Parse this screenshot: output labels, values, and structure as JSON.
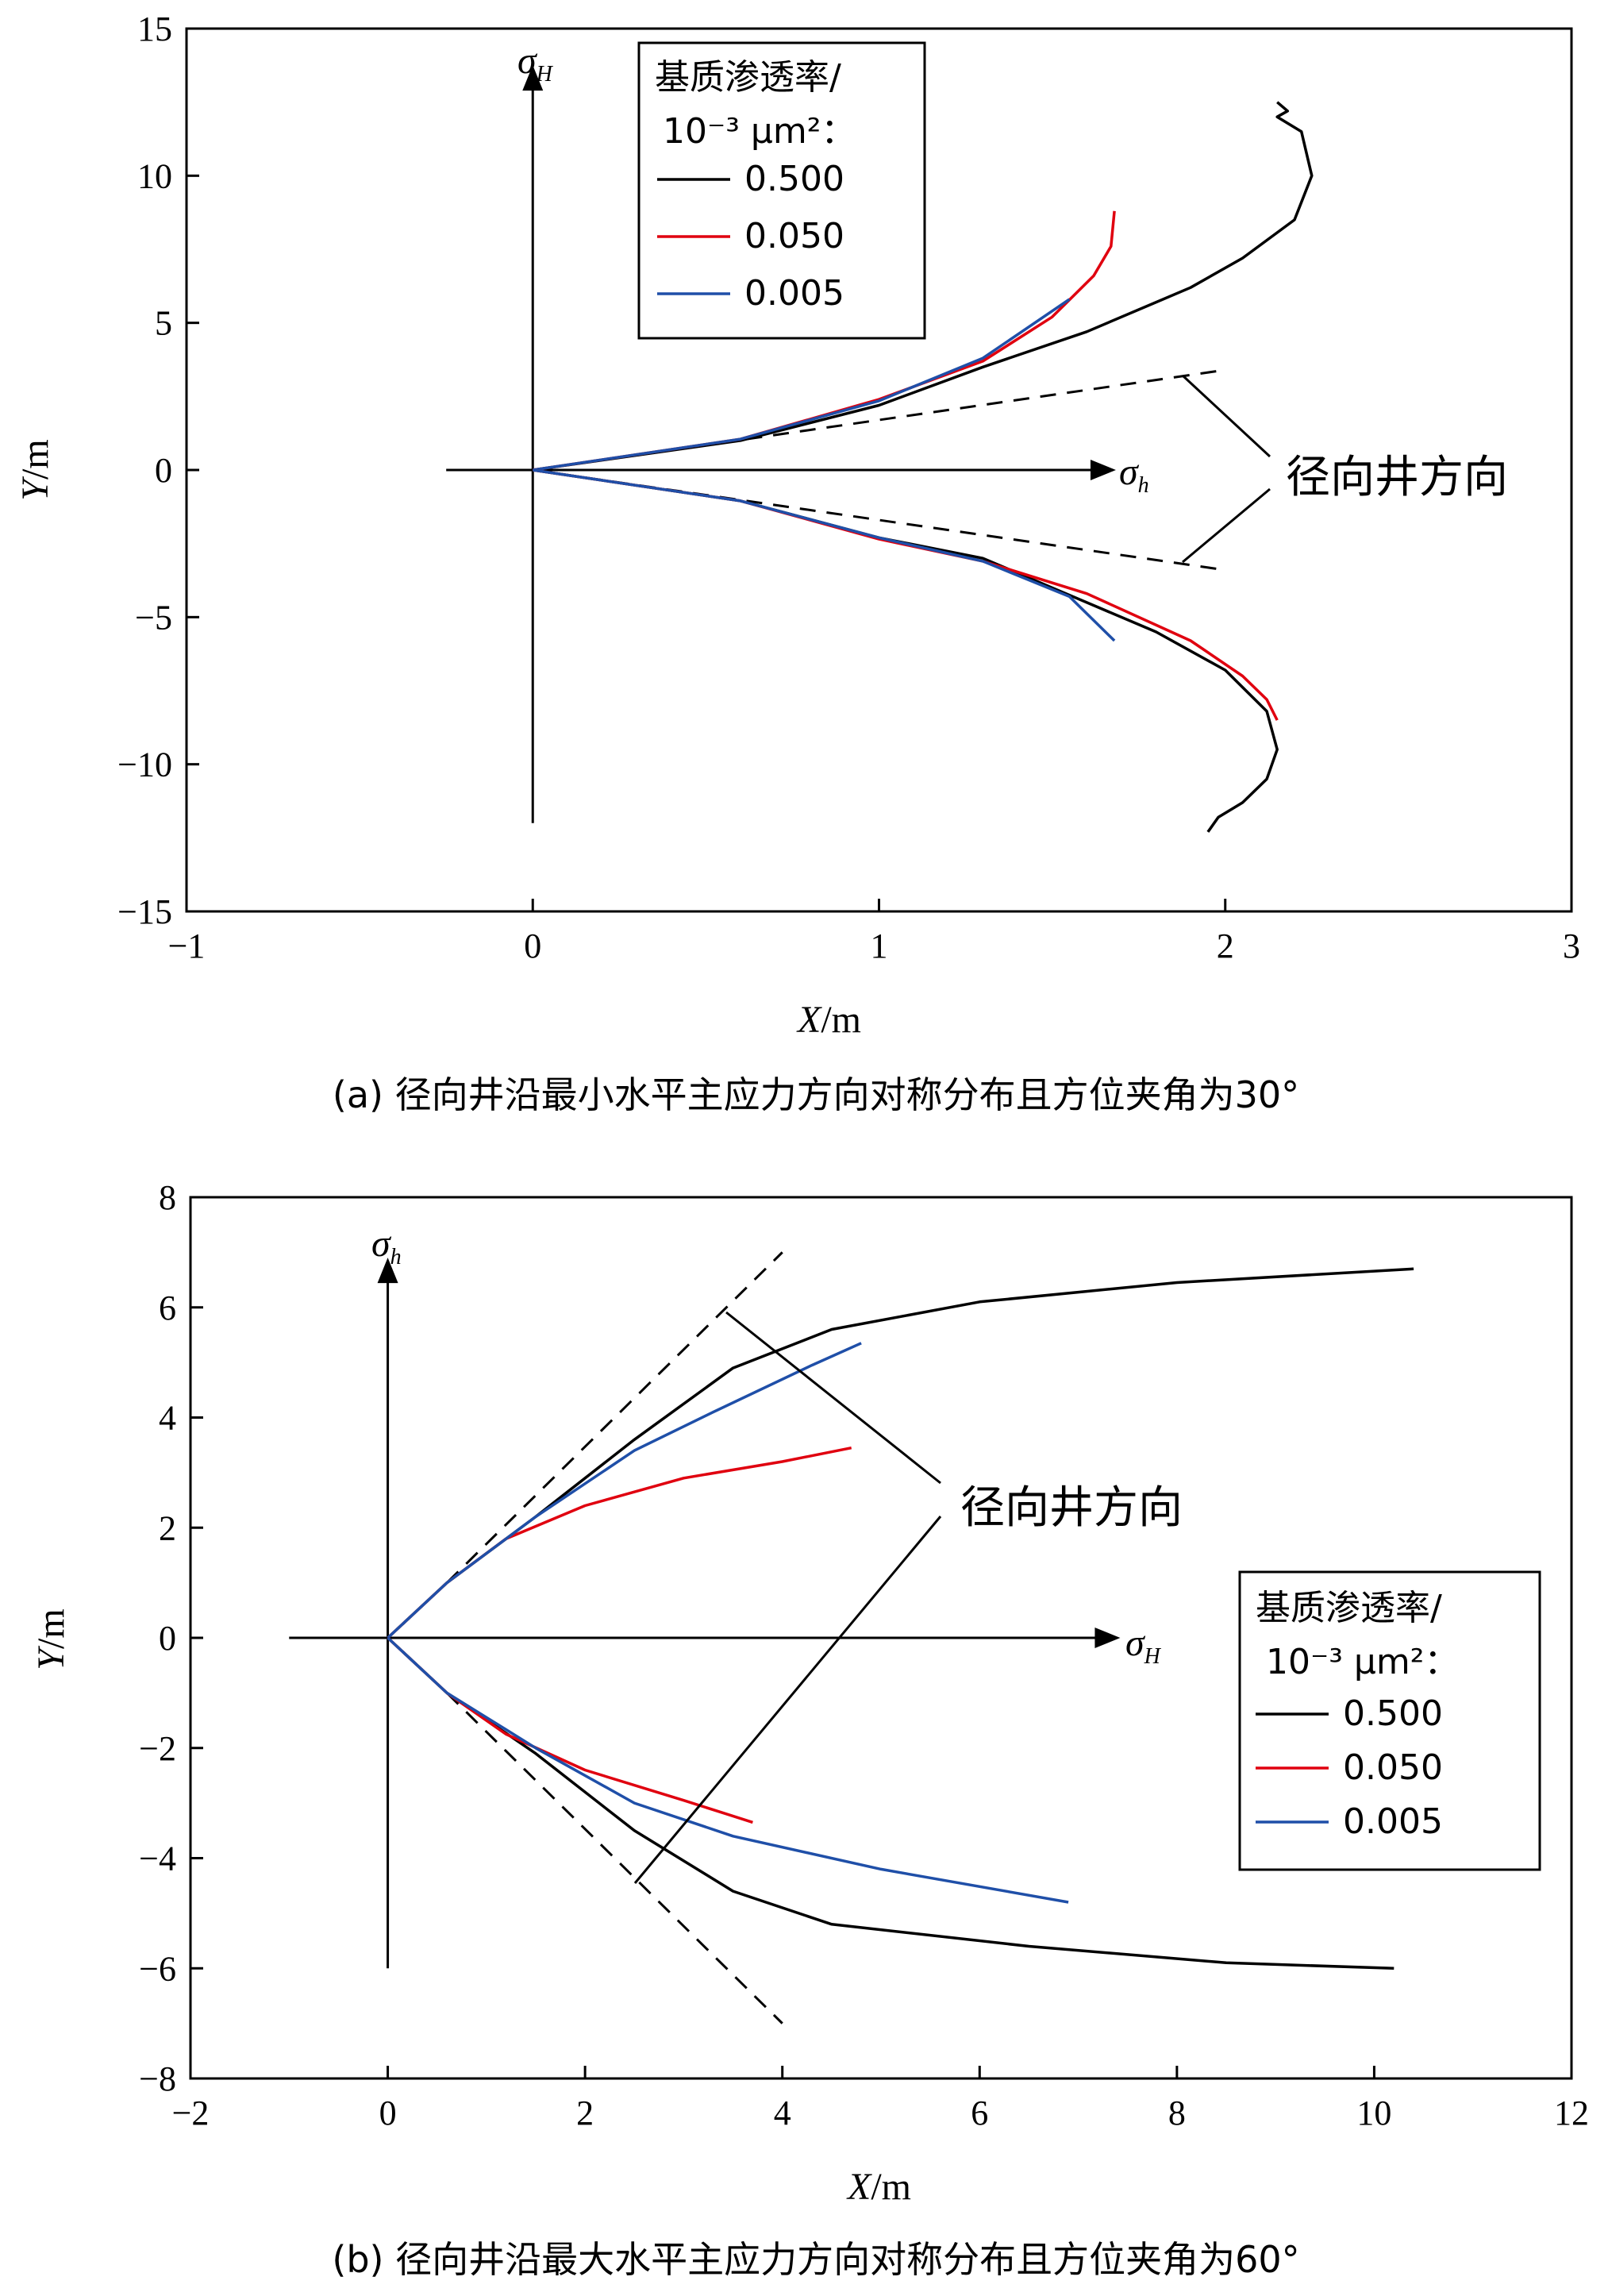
{
  "chart_data": [
    {
      "type": "line",
      "caption": "(a) 径向井沿最小水平主应力方向对称分布且方位夹角为30°",
      "xlabel_var": "X",
      "xlabel_unit": "/m",
      "ylabel_var": "Y",
      "ylabel_unit": "/m",
      "xlim": [
        -1,
        3
      ],
      "ylim": [
        -15,
        15
      ],
      "xticks": [
        "−1",
        "0",
        "1",
        "2",
        "3"
      ],
      "yticks": [
        "15",
        "10",
        "5",
        "0",
        "−5",
        "−10",
        "−15"
      ],
      "xtick_values": [
        -1,
        0,
        1,
        2,
        3
      ],
      "ytick_values": [
        15,
        10,
        5,
        0,
        -5,
        -10,
        -15
      ],
      "stress_x": {
        "symbol": "σ",
        "sub": "h"
      },
      "stress_y": {
        "symbol": "σ",
        "sub": "H"
      },
      "stress_axes": {
        "x": [
          -0.25,
          1.62
        ],
        "y": [
          -12,
          13
        ]
      },
      "legend": {
        "title_line1": "基质渗透率/",
        "title_line2": "10⁻³ μm²：",
        "position": "top-center",
        "entries": [
          {
            "label": "0.500",
            "color": "#000000"
          },
          {
            "label": "0.050",
            "color": "#e0000f"
          },
          {
            "label": "0.005",
            "color": "#1f4fa8"
          }
        ]
      },
      "annotation": "径向井方向",
      "guide_lines": [
        [
          [
            0,
            0
          ],
          [
            2.0,
            3.4
          ]
        ],
        [
          [
            0,
            0
          ],
          [
            2.0,
            -3.4
          ]
        ]
      ],
      "series": [
        {
          "name": "0.500",
          "color": "#000000",
          "x": [
            0,
            0.6,
            1.0,
            1.3,
            1.6,
            1.9,
            2.05,
            2.2,
            2.25,
            2.22,
            2.15,
            2.18,
            2.15
          ],
          "y": [
            0,
            1.0,
            2.2,
            3.5,
            4.7,
            6.2,
            7.2,
            8.5,
            10.0,
            11.5,
            12.0,
            12.2,
            12.5
          ]
        },
        {
          "name": "0.050",
          "color": "#e0000f",
          "x": [
            0,
            0.6,
            1.0,
            1.3,
            1.5,
            1.62,
            1.67,
            1.68
          ],
          "y": [
            0,
            1.05,
            2.4,
            3.7,
            5.2,
            6.6,
            7.6,
            8.8
          ]
        },
        {
          "name": "0.005",
          "color": "#1f4fa8",
          "x": [
            0,
            0.6,
            1.0,
            1.3,
            1.55
          ],
          "y": [
            0,
            1.05,
            2.35,
            3.8,
            5.8
          ]
        },
        {
          "name": "0.500",
          "color": "#000000",
          "x": [
            0,
            0.6,
            1.0,
            1.3,
            1.5,
            1.8,
            2.0,
            2.12,
            2.15,
            2.12,
            2.05,
            1.98,
            1.95
          ],
          "y": [
            0,
            -1.05,
            -2.3,
            -3.0,
            -4.0,
            -5.5,
            -6.8,
            -8.2,
            -9.5,
            -10.5,
            -11.3,
            -11.8,
            -12.3
          ]
        },
        {
          "name": "0.050",
          "color": "#e0000f",
          "x": [
            0,
            0.6,
            1.0,
            1.3,
            1.6,
            1.9,
            2.05,
            2.12,
            2.15
          ],
          "y": [
            0,
            -1.05,
            -2.35,
            -3.1,
            -4.2,
            -5.8,
            -7.0,
            -7.8,
            -8.5
          ]
        },
        {
          "name": "0.005",
          "color": "#1f4fa8",
          "x": [
            0,
            0.6,
            1.0,
            1.3,
            1.55,
            1.68
          ],
          "y": [
            0,
            -1.05,
            -2.3,
            -3.1,
            -4.3,
            -5.8
          ]
        }
      ]
    },
    {
      "type": "line",
      "caption": "(b) 径向井沿最大水平主应力方向对称分布且方位夹角为60°",
      "xlabel_var": "X",
      "xlabel_unit": "/m",
      "ylabel_var": "Y",
      "ylabel_unit": "/m",
      "xlim": [
        -2,
        12
      ],
      "ylim": [
        -8,
        8
      ],
      "xticks": [
        "−2",
        "0",
        "2",
        "4",
        "6",
        "8",
        "10",
        "12"
      ],
      "yticks": [
        "8",
        "6",
        "4",
        "2",
        "0",
        "−2",
        "−4",
        "−6",
        "−8"
      ],
      "xtick_values": [
        -2,
        0,
        2,
        4,
        6,
        8,
        10,
        12
      ],
      "ytick_values": [
        8,
        6,
        4,
        2,
        0,
        -2,
        -4,
        -6,
        -8
      ],
      "stress_x": {
        "symbol": "σ",
        "sub": "H"
      },
      "stress_y": {
        "symbol": "σ",
        "sub": "h"
      },
      "stress_axes": {
        "x": [
          -1.0,
          7.2
        ],
        "y": [
          -6,
          6.5
        ]
      },
      "legend": {
        "title_line1": "基质渗透率/",
        "title_line2": "10⁻³ μm²：",
        "position": "bottom-right",
        "entries": [
          {
            "label": "0.500",
            "color": "#000000"
          },
          {
            "label": "0.050",
            "color": "#e0000f"
          },
          {
            "label": "0.005",
            "color": "#1f4fa8"
          }
        ]
      },
      "annotation": "径向井方向",
      "guide_lines": [
        [
          [
            0.6,
            1.0
          ],
          [
            4.0,
            7.0
          ]
        ],
        [
          [
            0.6,
            -1.0
          ],
          [
            4.0,
            -7.0
          ]
        ]
      ],
      "series": [
        {
          "name": "0.500",
          "color": "#000000",
          "x": [
            0,
            0.6,
            1.5,
            2.5,
            3.5,
            4.5,
            6,
            8,
            10.4
          ],
          "y": [
            0,
            1.0,
            2.2,
            3.6,
            4.9,
            5.6,
            6.1,
            6.45,
            6.7
          ]
        },
        {
          "name": "0.050",
          "color": "#e0000f",
          "x": [
            0,
            0.6,
            1.2,
            2.0,
            3.0,
            4.0,
            4.7
          ],
          "y": [
            0,
            1.0,
            1.8,
            2.4,
            2.9,
            3.2,
            3.45
          ]
        },
        {
          "name": "0.005",
          "color": "#1f4fa8",
          "x": [
            0,
            0.6,
            1.5,
            2.5,
            3.3,
            4.3,
            4.8
          ],
          "y": [
            0,
            1.0,
            2.2,
            3.4,
            4.1,
            4.95,
            5.35
          ]
        },
        {
          "name": "0.500",
          "color": "#000000",
          "x": [
            0,
            0.6,
            1.5,
            2.5,
            3.5,
            4.5,
            6.5,
            8.5,
            10.2
          ],
          "y": [
            0,
            -1.0,
            -2.1,
            -3.5,
            -4.6,
            -5.2,
            -5.6,
            -5.9,
            -6.0
          ]
        },
        {
          "name": "0.050",
          "color": "#e0000f",
          "x": [
            0,
            0.6,
            1.2,
            2.0,
            3.0,
            3.7
          ],
          "y": [
            0,
            -1.0,
            -1.75,
            -2.4,
            -2.95,
            -3.35
          ]
        },
        {
          "name": "0.005",
          "color": "#1f4fa8",
          "x": [
            0,
            0.6,
            1.5,
            2.5,
            3.5,
            5.0,
            6.9
          ],
          "y": [
            0,
            -1.0,
            -2.0,
            -3.0,
            -3.6,
            -4.2,
            -4.8
          ]
        }
      ]
    }
  ]
}
